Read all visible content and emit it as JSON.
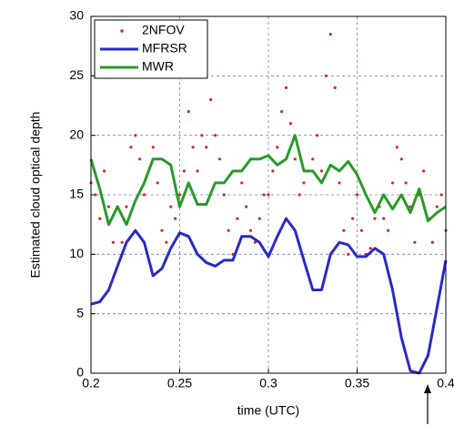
{
  "chart_data": {
    "type": "line",
    "y_label": "Estimated cloud optical depth",
    "x_label": "time (UTC)",
    "xlim": [
      0.2,
      0.4
    ],
    "xticks": [
      0.2,
      0.25,
      0.3,
      0.35,
      0.4
    ],
    "ylim": [
      0,
      30
    ],
    "yticks": [
      0,
      5,
      10,
      15,
      20,
      25,
      30
    ],
    "grid": true,
    "legend": "upper left",
    "series": [
      {
        "name": "2NFOV",
        "color": "#d42a2a",
        "mode": "markers",
        "x": [
          0.2,
          0.2025,
          0.205,
          0.2075,
          0.21,
          0.2125,
          0.215,
          0.2175,
          0.22,
          0.2225,
          0.225,
          0.2275,
          0.23,
          0.2325,
          0.235,
          0.2375,
          0.24,
          0.2425,
          0.245,
          0.2475,
          0.25,
          0.2525,
          0.255,
          0.2575,
          0.26,
          0.2625,
          0.265,
          0.2675,
          0.27,
          0.2725,
          0.275,
          0.2775,
          0.28,
          0.2825,
          0.285,
          0.2875,
          0.29,
          0.2925,
          0.295,
          0.2975,
          0.3,
          0.3025,
          0.305,
          0.3075,
          0.31,
          0.3125,
          0.315,
          0.3175,
          0.32,
          0.3225,
          0.325,
          0.3275,
          0.33,
          0.3325,
          0.335,
          0.3375,
          0.34,
          0.3425,
          0.345,
          0.3475,
          0.35,
          0.3525,
          0.355,
          0.3575,
          0.36,
          0.3625,
          0.365,
          0.3675,
          0.37,
          0.3725,
          0.375,
          0.3775,
          0.38,
          0.3825,
          0.385,
          0.3875,
          0.39,
          0.3925,
          0.395,
          0.3975,
          0.4
        ],
        "values": [
          16,
          15,
          13,
          17,
          14,
          11,
          14,
          11,
          14,
          19,
          20,
          18,
          15,
          17,
          19,
          16,
          12,
          11,
          14,
          13,
          15,
          17,
          22,
          19,
          17,
          20,
          19,
          23,
          20,
          18,
          15,
          12,
          10,
          13,
          16,
          14,
          12,
          11,
          13,
          15,
          15,
          17,
          19,
          22,
          24,
          21,
          18,
          15,
          16,
          17,
          18,
          20,
          17,
          25,
          28.5,
          24,
          16,
          12,
          10,
          13,
          15,
          12,
          10,
          10.5,
          13,
          14,
          13,
          12,
          16,
          19,
          18,
          16,
          14,
          11,
          15,
          17,
          13,
          11,
          14,
          15,
          12
        ]
      },
      {
        "name": "MFRSR",
        "color": "#2a2ac8",
        "mode": "lines",
        "x": [
          0.2,
          0.205,
          0.21,
          0.215,
          0.22,
          0.225,
          0.23,
          0.235,
          0.24,
          0.245,
          0.25,
          0.255,
          0.26,
          0.265,
          0.27,
          0.275,
          0.28,
          0.285,
          0.29,
          0.295,
          0.3,
          0.305,
          0.31,
          0.315,
          0.32,
          0.325,
          0.33,
          0.335,
          0.34,
          0.345,
          0.35,
          0.355,
          0.36,
          0.365,
          0.37,
          0.375,
          0.38,
          0.385,
          0.39,
          0.395,
          0.4
        ],
        "values": [
          5.8,
          6,
          7,
          9,
          11,
          12,
          11,
          8.2,
          8.8,
          10.5,
          11.8,
          11.5,
          10,
          9.3,
          9,
          9.5,
          9.5,
          11.5,
          11.5,
          11,
          9.8,
          11.5,
          13,
          12,
          9.5,
          7,
          7,
          10,
          11,
          10.8,
          9.8,
          9.8,
          10.5,
          10,
          7,
          3,
          0.2,
          0,
          1.5,
          5.5,
          9.5
        ]
      },
      {
        "name": "MWR",
        "color": "#2a9a2a",
        "mode": "lines",
        "x": [
          0.2,
          0.205,
          0.21,
          0.215,
          0.22,
          0.225,
          0.23,
          0.235,
          0.24,
          0.245,
          0.25,
          0.255,
          0.26,
          0.265,
          0.27,
          0.275,
          0.28,
          0.285,
          0.29,
          0.295,
          0.3,
          0.305,
          0.31,
          0.315,
          0.32,
          0.325,
          0.33,
          0.335,
          0.34,
          0.345,
          0.35,
          0.355,
          0.36,
          0.365,
          0.37,
          0.375,
          0.38,
          0.385,
          0.39,
          0.395,
          0.4
        ],
        "values": [
          18,
          15.5,
          12.5,
          14,
          12.5,
          14.5,
          16,
          18,
          18,
          17.5,
          14,
          16,
          14.2,
          14.2,
          16,
          16,
          17,
          17,
          18,
          18,
          18.3,
          17.5,
          18,
          20,
          17,
          17,
          16,
          17.5,
          17,
          17.8,
          16.7,
          15,
          13.5,
          15,
          13.8,
          15,
          13.5,
          15.5,
          12.8,
          13.5,
          14
        ]
      }
    ]
  }
}
